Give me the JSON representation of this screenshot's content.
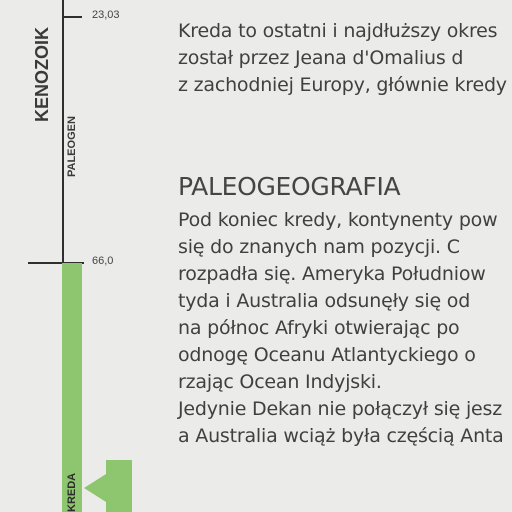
{
  "timeline": {
    "ticks": [
      {
        "label": "23,03"
      },
      {
        "label": "66,0"
      }
    ],
    "era_label": "KENOZOIK",
    "period_label": "PALEOGEN",
    "bar_label": "KREDA",
    "colors": {
      "bar": "#8dc66f",
      "line": "#2f2f2f"
    }
  },
  "intro": {
    "lines": [
      "Kreda to ostatni i najdłuższy okres",
      "został przez Jeana d'Omalius d",
      "z zachodniej Europy, głównie kredy"
    ]
  },
  "section": {
    "heading": "PALEOGEOGRAFIA",
    "lines": [
      "Pod koniec kredy, kontynenty pow",
      "się do znanych nam pozycji. C",
      "rozpadła się. Ameryka Południow",
      "tyda i Australia odsunęły się od",
      "na północ Afryki otwierając po",
      "odnogę Oceanu Atlantyckiego o",
      "rzając Ocean Indyjski.",
      "Jedynie Dekan nie połączył się jesz",
      "a Australia wciąż była częścią Anta"
    ]
  }
}
